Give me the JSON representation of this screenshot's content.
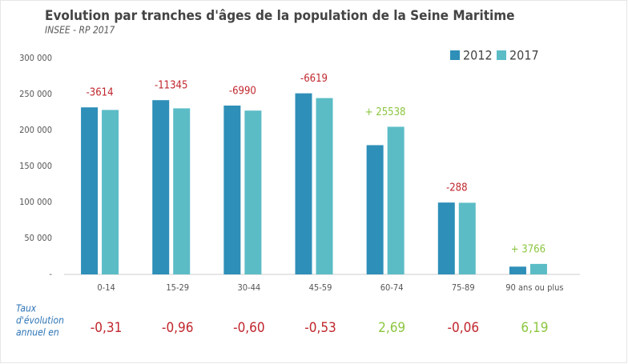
{
  "chart_data": {
    "type": "bar",
    "title": "Evolution par tranches d'âges de la population de la Seine Maritime",
    "subtitle": "INSEE - RP 2017",
    "categories": [
      "0-14",
      "15-29",
      "30-44",
      "45-59",
      "60-74",
      "75-89",
      "90 ans ou plus"
    ],
    "series": [
      {
        "name": "2012",
        "color": "#2e8fb8",
        "values": [
          232000,
          242000,
          234500,
          251500,
          179500,
          99800,
          10800
        ]
      },
      {
        "name": "2017",
        "color": "#5bbcc6",
        "values": [
          228386,
          230655,
          227510,
          244881,
          205038,
          99512,
          14566
        ]
      }
    ],
    "ylim": [
      0,
      300000
    ],
    "yticks": [
      {
        "value": 0,
        "label": "-"
      },
      {
        "value": 50000,
        "label": "50 000"
      },
      {
        "value": 100000,
        "label": "100 000"
      },
      {
        "value": 150000,
        "label": "150 000"
      },
      {
        "value": 200000,
        "label": "200 000"
      },
      {
        "value": 250000,
        "label": "250 000"
      },
      {
        "value": 300000,
        "label": "300 000"
      }
    ],
    "legend": "top-right",
    "annotations": [
      {
        "text": "-3614",
        "color": "#c0262d"
      },
      {
        "text": "-11345",
        "color": "#c0262d"
      },
      {
        "text": "-6990",
        "color": "#c0262d"
      },
      {
        "text": "-6619",
        "color": "#c0262d"
      },
      {
        "text": "+ 25538",
        "color": "#8cc63f"
      },
      {
        "text": "-288",
        "color": "#c0262d"
      },
      {
        "text": "+ 3766",
        "color": "#8cc63f"
      }
    ],
    "rate_label": [
      "Taux",
      "d'évolution",
      "annuel en"
    ],
    "rates": [
      {
        "text": "-0,31",
        "color": "#c0262d"
      },
      {
        "text": "-0,96",
        "color": "#c0262d"
      },
      {
        "text": "-0,60",
        "color": "#c0262d"
      },
      {
        "text": "-0,53",
        "color": "#c0262d"
      },
      {
        "text": "2,69",
        "color": "#8cc63f"
      },
      {
        "text": "-0,06",
        "color": "#c0262d"
      },
      {
        "text": "6,19",
        "color": "#8cc63f"
      }
    ]
  }
}
